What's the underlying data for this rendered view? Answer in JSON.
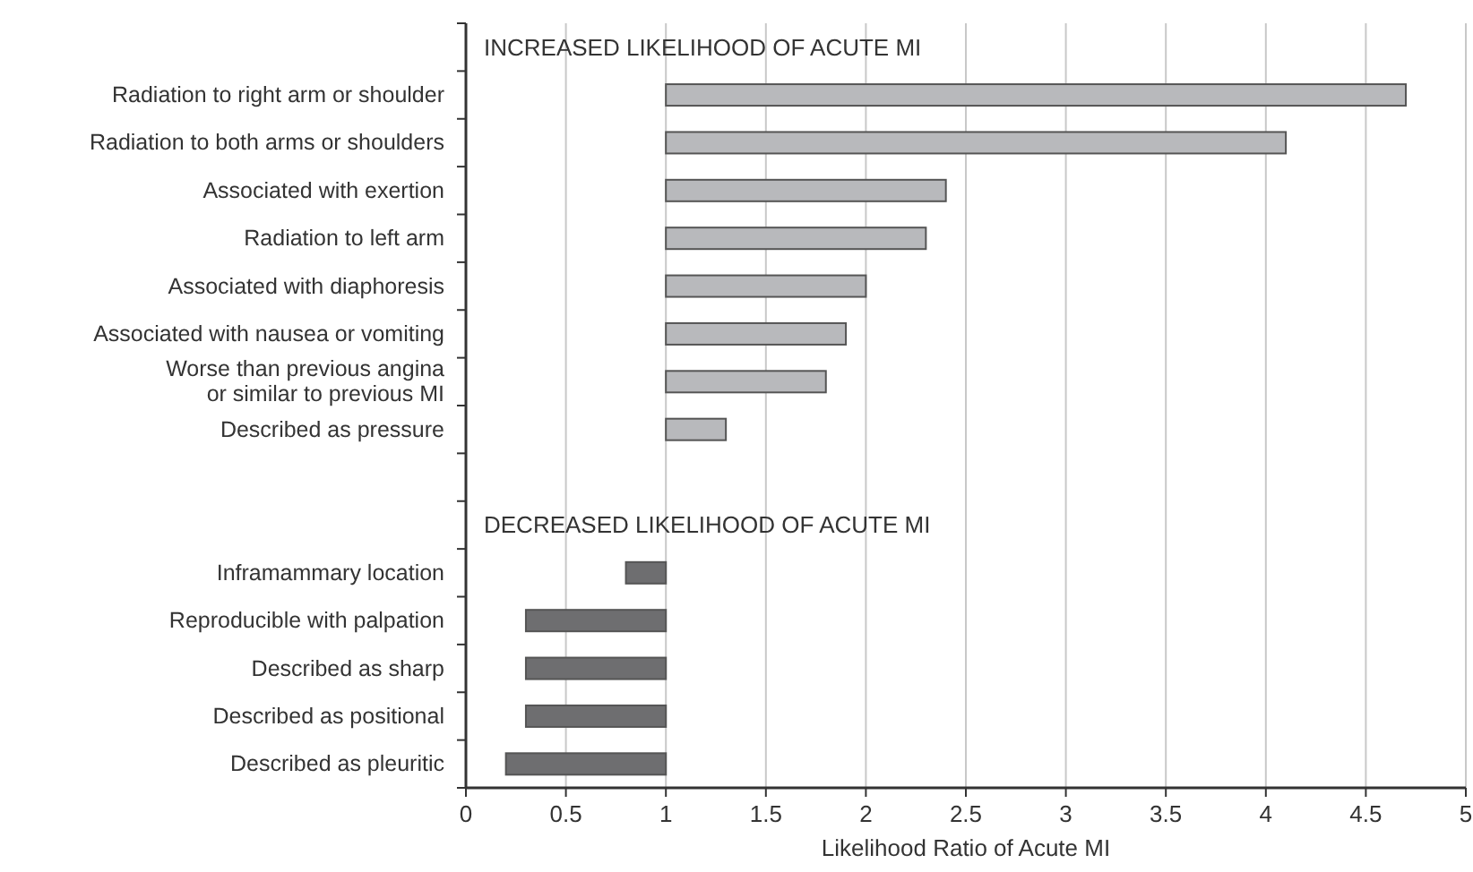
{
  "chart_data": {
    "type": "bar",
    "orientation": "horizontal",
    "xlabel": "Likelihood Ratio of Acute MI",
    "categories": [
      null,
      "Radiation to right arm or shoulder",
      "Radiation to both arms or shoulders",
      "Associated with exertion",
      "Radiation to left arm",
      "Associated with diaphoresis",
      "Associated with nausea or vomiting",
      "Worse than previous angina\nor similar to previous MI",
      "Described as pressure",
      null,
      null,
      "Inframammary location",
      "Reproducible with palpation",
      "Described as sharp",
      "Described as positional",
      "Described as pleuritic"
    ],
    "values": [
      null,
      3.7,
      3.1,
      1.4,
      1.3,
      1.0,
      0.9,
      0.8,
      0.3,
      null,
      null,
      -0.2,
      -0.7,
      -0.7,
      -0.7,
      -0.8
    ],
    "base": [
      null,
      1,
      1,
      1,
      1,
      1,
      1,
      1,
      1,
      null,
      null,
      1,
      1,
      1,
      1,
      1
    ],
    "colors": [
      null,
      "#b8b9bc",
      "#b8b9bc",
      "#b8b9bc",
      "#b8b9bc",
      "#b8b9bc",
      "#b8b9bc",
      "#b8b9bc",
      "#b8b9bc",
      null,
      null,
      "#6e6e70",
      "#6e6e70",
      "#6e6e70",
      "#6e6e70",
      "#6e6e70"
    ],
    "xlim": [
      0,
      5
    ],
    "xticks": [
      0,
      0.5,
      1,
      1.5,
      2,
      2.5,
      3,
      3.5,
      4,
      4.5,
      5
    ],
    "grid": "x",
    "annotations": [
      "INCREASED LIKELIHOOD OF ACUTE MI",
      "DECREASED LIKELIHOOD OF ACUTE MI"
    ]
  }
}
